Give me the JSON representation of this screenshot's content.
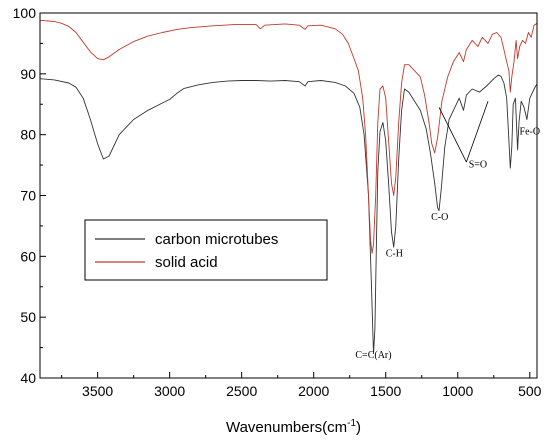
{
  "chart_data": {
    "type": "line",
    "title": "",
    "xlabel": "Wavenumbers(cm",
    "xlabel_sup": "-1",
    "xlabel_close": ")",
    "ylabel": "",
    "xlim": [
      3900,
      450
    ],
    "ylim": [
      40,
      100
    ],
    "x_reversed": true,
    "xticks": [
      3500,
      3000,
      2500,
      2000,
      1500,
      1000,
      500
    ],
    "yticks": [
      40,
      50,
      60,
      70,
      80,
      90,
      100
    ],
    "grid": false,
    "legend_position": "center-left",
    "series": [
      {
        "name": "carbon microtubes",
        "color": "#333333",
        "points": [
          [
            3900,
            89.2
          ],
          [
            3800,
            89.0
          ],
          [
            3700,
            88.5
          ],
          [
            3650,
            87.8
          ],
          [
            3600,
            86.0
          ],
          [
            3550,
            82.5
          ],
          [
            3500,
            78.5
          ],
          [
            3460,
            76.0
          ],
          [
            3420,
            76.5
          ],
          [
            3350,
            80.0
          ],
          [
            3250,
            82.5
          ],
          [
            3150,
            84.0
          ],
          [
            3050,
            85.2
          ],
          [
            3000,
            85.8
          ],
          [
            2950,
            86.8
          ],
          [
            2900,
            87.6
          ],
          [
            2800,
            88.2
          ],
          [
            2700,
            88.6
          ],
          [
            2600,
            88.8
          ],
          [
            2500,
            88.9
          ],
          [
            2400,
            88.9
          ],
          [
            2300,
            88.8
          ],
          [
            2200,
            88.9
          ],
          [
            2100,
            88.7
          ],
          [
            2060,
            88.0
          ],
          [
            2040,
            88.7
          ],
          [
            1950,
            88.9
          ],
          [
            1850,
            88.6
          ],
          [
            1780,
            88.0
          ],
          [
            1720,
            86.8
          ],
          [
            1680,
            84.5
          ],
          [
            1650,
            80.0
          ],
          [
            1620,
            70.0
          ],
          [
            1600,
            56.0
          ],
          [
            1585,
            44.0
          ],
          [
            1575,
            48.0
          ],
          [
            1565,
            62.0
          ],
          [
            1555,
            74.0
          ],
          [
            1540,
            80.5
          ],
          [
            1520,
            82.0
          ],
          [
            1500,
            79.0
          ],
          [
            1480,
            72.0
          ],
          [
            1460,
            64.0
          ],
          [
            1445,
            61.5
          ],
          [
            1430,
            65.0
          ],
          [
            1410,
            76.0
          ],
          [
            1390,
            84.0
          ],
          [
            1370,
            87.5
          ],
          [
            1340,
            87.0
          ],
          [
            1300,
            85.5
          ],
          [
            1260,
            84.0
          ],
          [
            1220,
            81.0
          ],
          [
            1190,
            77.0
          ],
          [
            1160,
            72.0
          ],
          [
            1140,
            68.0
          ],
          [
            1130,
            67.5
          ],
          [
            1115,
            71.0
          ],
          [
            1090,
            78.0
          ],
          [
            1060,
            82.5
          ],
          [
            1020,
            84.5
          ],
          [
            990,
            86.0
          ],
          [
            960,
            84.0
          ],
          [
            940,
            86.5
          ],
          [
            900,
            87.5
          ],
          [
            850,
            87.0
          ],
          [
            800,
            88.0
          ],
          [
            750,
            89.2
          ],
          [
            720,
            89.8
          ],
          [
            700,
            89.6
          ],
          [
            680,
            88.5
          ],
          [
            660,
            86.0
          ],
          [
            645,
            79.0
          ],
          [
            635,
            74.5
          ],
          [
            625,
            78.0
          ],
          [
            615,
            85.0
          ],
          [
            600,
            86.0
          ],
          [
            585,
            77.5
          ],
          [
            575,
            82.0
          ],
          [
            560,
            85.5
          ],
          [
            540,
            84.5
          ],
          [
            520,
            82.5
          ],
          [
            500,
            86.0
          ],
          [
            480,
            87.0
          ],
          [
            460,
            88.0
          ],
          [
            450,
            88.3
          ]
        ]
      },
      {
        "name": "solid acid",
        "color": "#c0392b",
        "points": [
          [
            3900,
            98.8
          ],
          [
            3800,
            98.6
          ],
          [
            3750,
            98.3
          ],
          [
            3700,
            97.8
          ],
          [
            3650,
            96.8
          ],
          [
            3600,
            95.2
          ],
          [
            3550,
            93.6
          ],
          [
            3500,
            92.5
          ],
          [
            3460,
            92.3
          ],
          [
            3420,
            92.8
          ],
          [
            3350,
            94.0
          ],
          [
            3250,
            95.3
          ],
          [
            3150,
            96.2
          ],
          [
            3050,
            96.8
          ],
          [
            2950,
            97.3
          ],
          [
            2850,
            97.6
          ],
          [
            2700,
            97.9
          ],
          [
            2550,
            98.1
          ],
          [
            2400,
            98.1
          ],
          [
            2370,
            97.4
          ],
          [
            2340,
            98.0
          ],
          [
            2200,
            98.2
          ],
          [
            2100,
            98.0
          ],
          [
            2060,
            97.3
          ],
          [
            2040,
            97.9
          ],
          [
            1950,
            98.0
          ],
          [
            1850,
            97.4
          ],
          [
            1800,
            96.5
          ],
          [
            1760,
            95.0
          ],
          [
            1720,
            92.5
          ],
          [
            1690,
            90.5
          ],
          [
            1660,
            86.0
          ],
          [
            1640,
            80.0
          ],
          [
            1620,
            70.0
          ],
          [
            1605,
            62.5
          ],
          [
            1595,
            60.5
          ],
          [
            1585,
            62.0
          ],
          [
            1570,
            70.0
          ],
          [
            1555,
            82.0
          ],
          [
            1540,
            87.5
          ],
          [
            1520,
            88.0
          ],
          [
            1500,
            86.0
          ],
          [
            1480,
            79.0
          ],
          [
            1460,
            72.0
          ],
          [
            1445,
            70.0
          ],
          [
            1430,
            73.0
          ],
          [
            1410,
            82.0
          ],
          [
            1390,
            88.5
          ],
          [
            1370,
            91.5
          ],
          [
            1340,
            91.5
          ],
          [
            1300,
            90.5
          ],
          [
            1260,
            89.5
          ],
          [
            1230,
            86.5
          ],
          [
            1200,
            82.0
          ],
          [
            1180,
            78.5
          ],
          [
            1160,
            77.0
          ],
          [
            1140,
            79.5
          ],
          [
            1110,
            85.5
          ],
          [
            1070,
            89.5
          ],
          [
            1030,
            92.0
          ],
          [
            990,
            93.5
          ],
          [
            960,
            92.0
          ],
          [
            940,
            94.0
          ],
          [
            900,
            95.5
          ],
          [
            860,
            94.5
          ],
          [
            830,
            96.0
          ],
          [
            790,
            95.0
          ],
          [
            760,
            96.5
          ],
          [
            730,
            96.8
          ],
          [
            700,
            96.0
          ],
          [
            680,
            94.0
          ],
          [
            660,
            92.0
          ],
          [
            645,
            90.5
          ],
          [
            635,
            87.0
          ],
          [
            625,
            89.5
          ],
          [
            610,
            92.0
          ],
          [
            595,
            95.5
          ],
          [
            585,
            92.5
          ],
          [
            570,
            94.5
          ],
          [
            550,
            95.5
          ],
          [
            530,
            95.0
          ],
          [
            510,
            96.8
          ],
          [
            490,
            96.0
          ],
          [
            470,
            98.0
          ],
          [
            450,
            98.3
          ]
        ]
      }
    ],
    "annotations": [
      {
        "text": "C=C(Ar)",
        "x": 1585,
        "y": 43.3
      },
      {
        "text": "C-H",
        "x": 1440,
        "y": 60.0
      },
      {
        "text": "C-O",
        "x": 1125,
        "y": 66.0
      },
      {
        "text": "S=O",
        "x": 860,
        "y": 74.6
      },
      {
        "text": "Fe-O",
        "x": 500,
        "y": 80.0
      }
    ],
    "pointers": [
      {
        "from": [
          940,
          75.5
        ],
        "to": [
          1130,
          84.5
        ]
      },
      {
        "from": [
          940,
          75.5
        ],
        "to": [
          790,
          85.5
        ]
      }
    ],
    "legend": [
      {
        "label": "carbon microtubes",
        "color": "#333333"
      },
      {
        "label": "solid acid",
        "color": "#c0392b"
      }
    ]
  }
}
